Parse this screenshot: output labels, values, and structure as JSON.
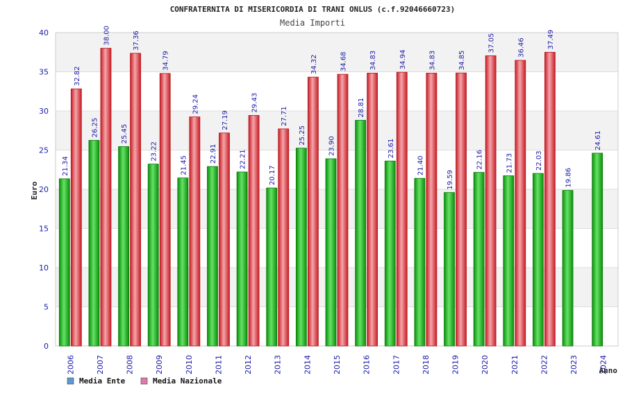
{
  "chart_data": {
    "type": "bar",
    "title": "CONFRATERNITA DI MISERICORDIA DI TRANI ONLUS (c.f.92046660723)",
    "subtitle": "Media Importi",
    "xlabel": "Anno",
    "ylabel": "Euro",
    "ylim": [
      0,
      40
    ],
    "yticks": [
      0,
      5,
      10,
      15,
      20,
      25,
      30,
      35,
      40
    ],
    "grid": true,
    "legend_position": "bottom-left",
    "categories": [
      "2006",
      "2007",
      "2008",
      "2009",
      "2010",
      "2011",
      "2012",
      "2013",
      "2014",
      "2015",
      "2016",
      "2017",
      "2018",
      "2019",
      "2020",
      "2021",
      "2022",
      "2023",
      "2024"
    ],
    "series": [
      {
        "name": "Media Ente",
        "color": "#22c322",
        "legend_color": "#5b9bd5",
        "values": [
          21.34,
          26.25,
          25.45,
          23.22,
          21.45,
          22.91,
          22.21,
          20.17,
          25.25,
          23.9,
          28.81,
          23.61,
          21.4,
          19.59,
          22.16,
          21.73,
          22.03,
          19.86,
          24.61
        ],
        "labels": [
          "21.34",
          "26.25",
          "25.45",
          "23.22",
          "21.45",
          "22.91",
          "22.21",
          "20.17",
          "25.25",
          "23.90",
          "28.81",
          "23.61",
          "21.40",
          "19.59",
          "22.16",
          "21.73",
          "22.03",
          "19.86",
          "24.61"
        ]
      },
      {
        "name": "Media Nazionale",
        "color": "#e8363c",
        "legend_color": "#e07aa8",
        "values": [
          32.82,
          38.0,
          37.36,
          34.79,
          29.24,
          27.19,
          29.43,
          27.71,
          34.32,
          34.68,
          34.83,
          34.94,
          34.83,
          34.85,
          37.05,
          36.46,
          37.49,
          null,
          null
        ],
        "labels": [
          "32.82",
          "38.00",
          "37.36",
          "34.79",
          "29.24",
          "27.19",
          "29.43",
          "27.71",
          "34.32",
          "34.68",
          "34.83",
          "34.94",
          "34.83",
          "34.85",
          "37.05",
          "36.46",
          "37.49",
          "",
          ""
        ]
      }
    ]
  }
}
